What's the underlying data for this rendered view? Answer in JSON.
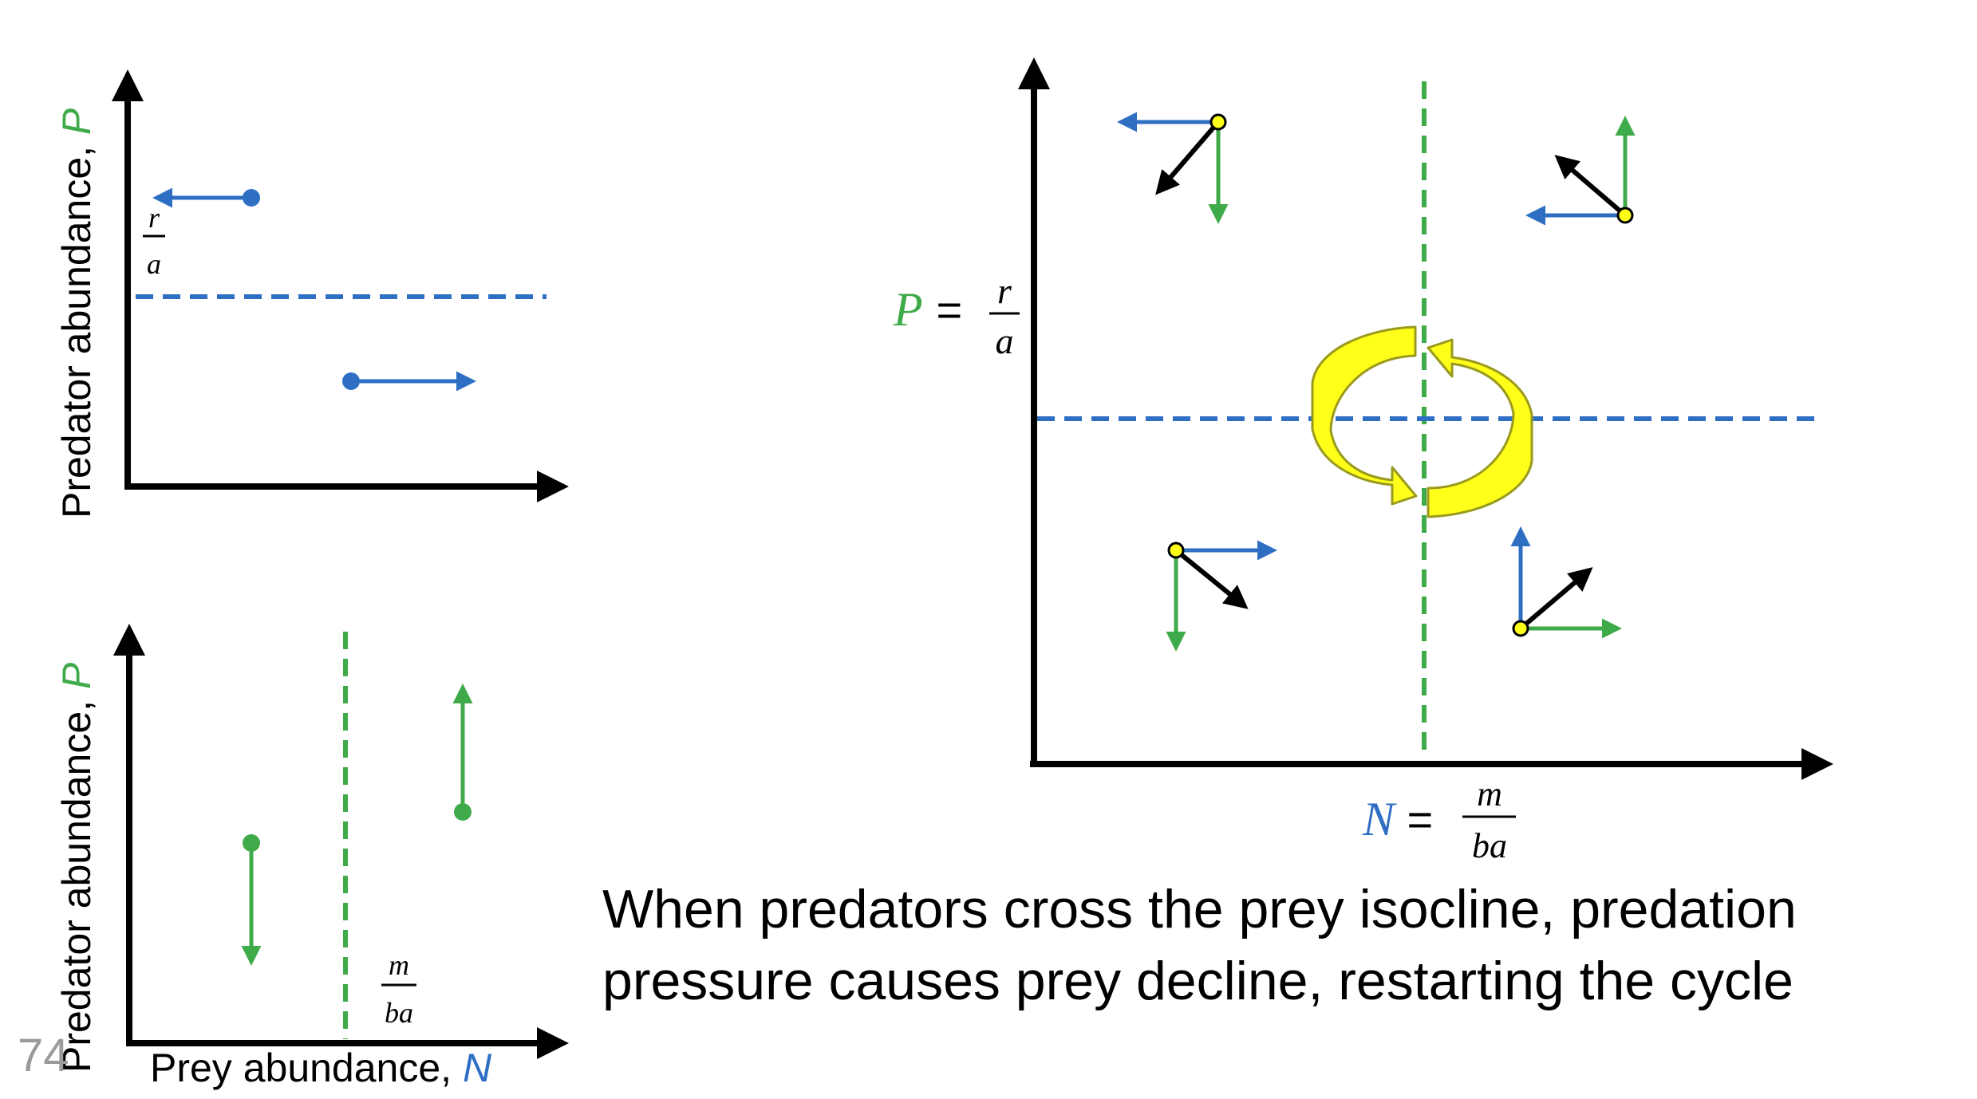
{
  "colors": {
    "blue": "#2e6fc4",
    "green": "#3faa49",
    "black": "#000000",
    "yellow": "#ffff1a",
    "yellow_edge": "#9a9a1e"
  },
  "top_left_panel": {
    "y_label_text": "Predator abundance, ",
    "y_label_var": "P",
    "isocline_num": "r",
    "isocline_den": "a"
  },
  "bottom_left_panel": {
    "y_label_text": "Predator abundance, ",
    "y_label_var": "P",
    "x_label_text": "Prey abundance, ",
    "x_label_var": "N",
    "isocline_num": "m",
    "isocline_den": "ba"
  },
  "phase_plane": {
    "p_label_var": "P",
    "p_label_eq": " = ",
    "p_label_num": "r",
    "p_label_den": "a",
    "n_label_var": "N",
    "n_label_eq": " = ",
    "n_label_num": "m",
    "n_label_den": "ba"
  },
  "caption": {
    "line1": "When predators cross the prey isocline, predation",
    "line2": "pressure causes prey decline, restarting the cycle"
  },
  "page_number": "74"
}
